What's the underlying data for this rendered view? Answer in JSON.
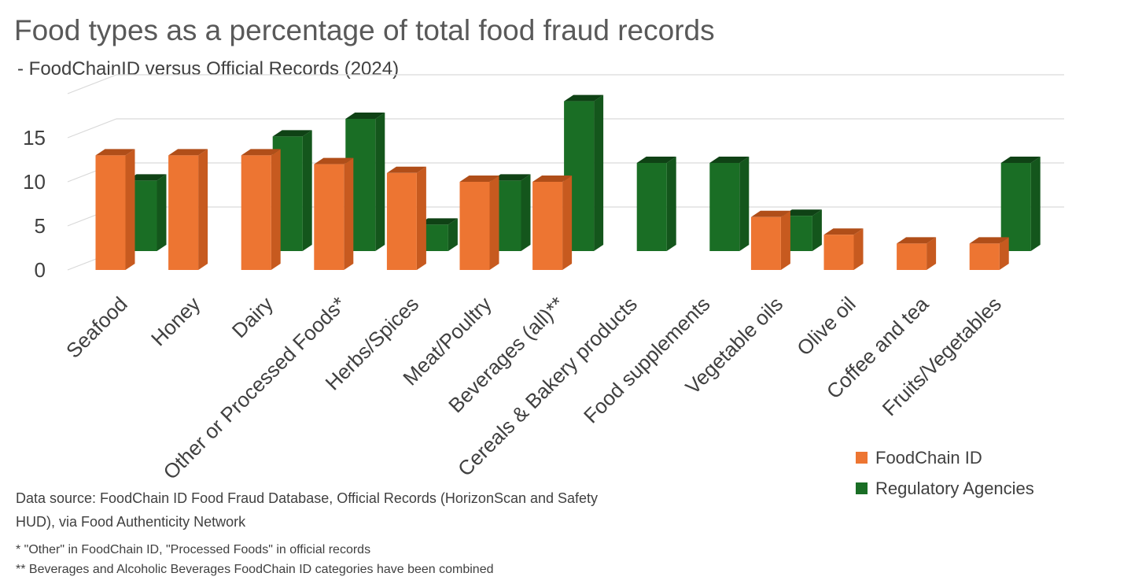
{
  "chart_data": {
    "type": "bar",
    "title": "Food types as a percentage of total food fraud records",
    "subtitle": " - FoodChainID versus Official Records (2024)",
    "categories": [
      "Seafood",
      "Honey",
      "Dairy",
      "Other or Processed Foods*",
      "Herbs/Spices",
      "Meat/Poultry",
      "Beverages (all)**",
      "Cereals & Bakery products",
      "Food supplements",
      "Vegetable oils",
      "Olive oil",
      "Coffee and tea",
      "Fruits/Vegetables"
    ],
    "series": [
      {
        "name": "FoodChain ID",
        "color": "#ed7532",
        "values": [
          13,
          13,
          13,
          12,
          11,
          10,
          10,
          0,
          0,
          6,
          4,
          3,
          3
        ]
      },
      {
        "name": "Regulatory Agencies",
        "color": "#1a6e25",
        "values": [
          8,
          0,
          13,
          15,
          3,
          8,
          17,
          10,
          10,
          4,
          0,
          0,
          10
        ]
      }
    ],
    "yticks": [
      "0",
      "5",
      "10",
      "15"
    ],
    "ylim": [
      0,
      20
    ],
    "grid": true,
    "legend_position": "bottom-right"
  },
  "notes": {
    "source": "Data source: FoodChain ID Food Fraud Database, Official Records (HorizonScan and Safety HUD), via Food Authenticity Network",
    "footnote1": "* \"Other\" in FoodChain ID, \"Processed Foods\" in official records",
    "footnote2": "** Beverages and Alcoholic Beverages FoodChain ID categories have been combined"
  }
}
